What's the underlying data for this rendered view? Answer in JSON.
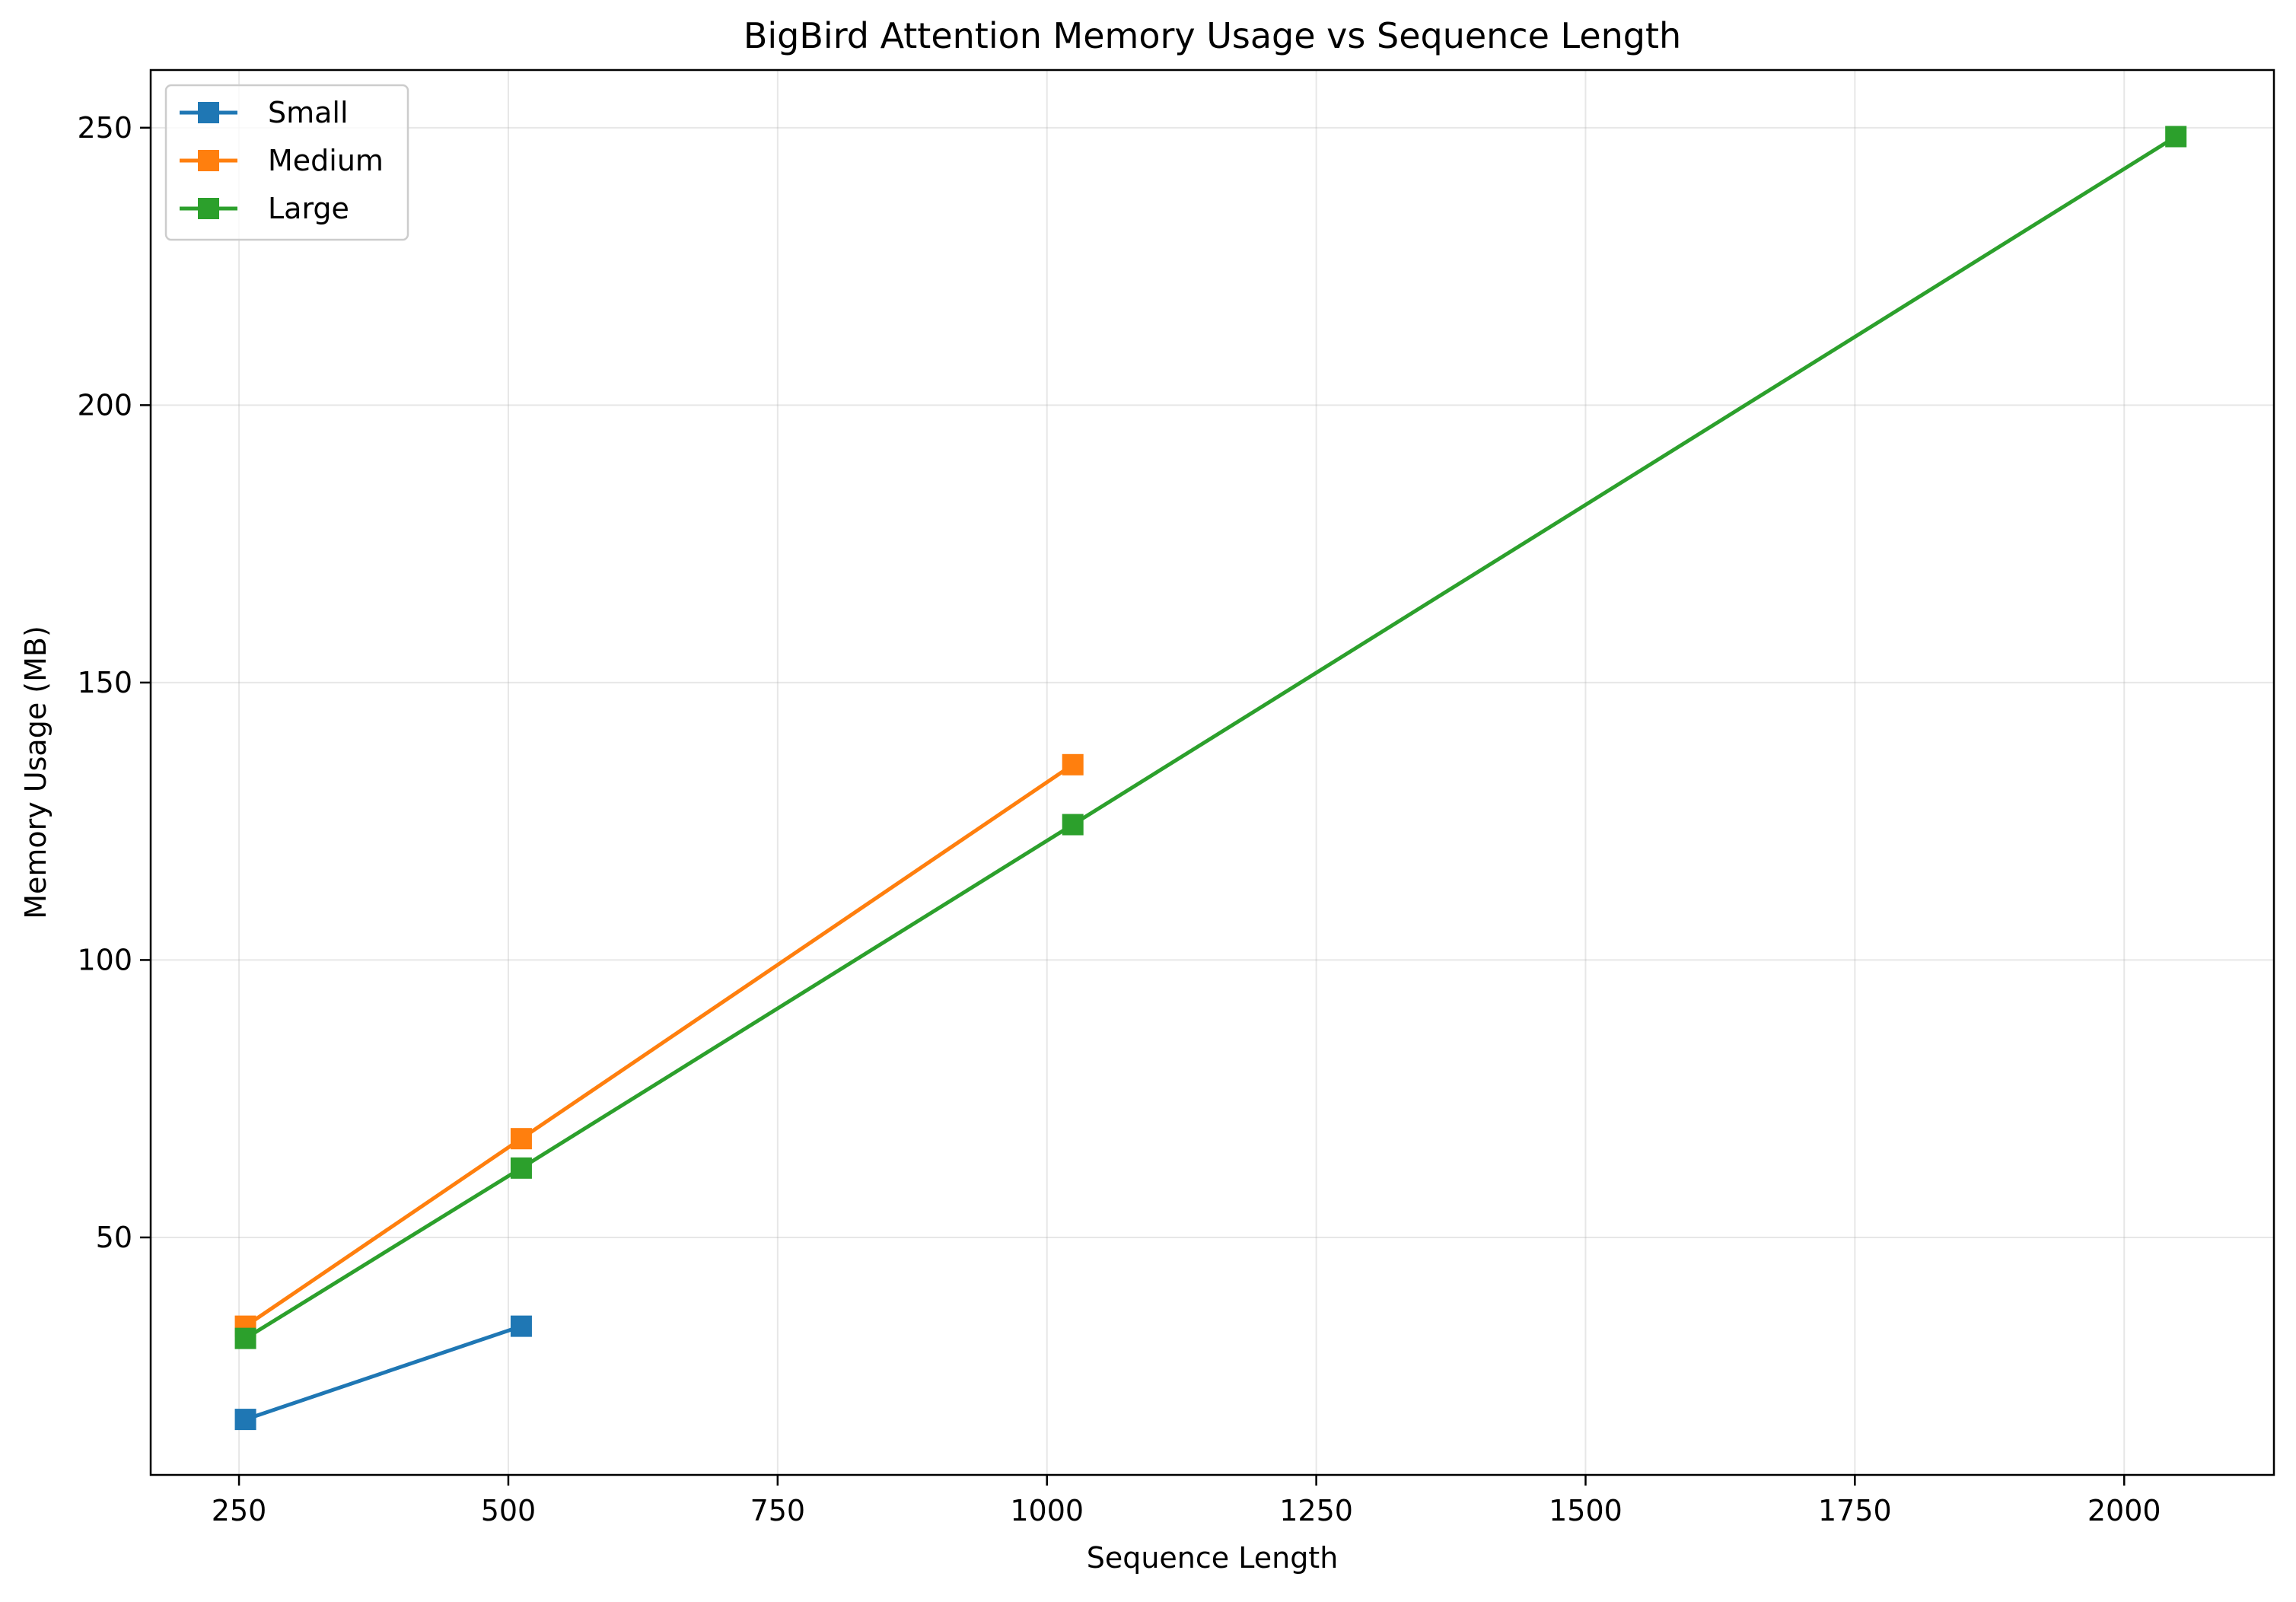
{
  "chart_data": {
    "type": "line",
    "title": "BigBird Attention Memory Usage vs Sequence Length",
    "xlabel": "Sequence Length",
    "ylabel": "Memory Usage (MB)",
    "xlim": [
      168,
      2139
    ],
    "ylim": [
      7.2,
      260.4
    ],
    "xticks": [
      250,
      500,
      750,
      1000,
      1250,
      1500,
      1750,
      2000
    ],
    "yticks": [
      50,
      100,
      150,
      200,
      250
    ],
    "grid": true,
    "legend_position": "top-left",
    "marker": "square",
    "series": [
      {
        "name": "Small",
        "color": "#1f77b4",
        "x": [
          256,
          512
        ],
        "y": [
          17.2,
          34.0
        ]
      },
      {
        "name": "Medium",
        "color": "#ff7f0e",
        "x": [
          256,
          512,
          1024
        ],
        "y": [
          34.0,
          67.8,
          135.2
        ]
      },
      {
        "name": "Large",
        "color": "#2ca02c",
        "x": [
          256,
          512,
          1024,
          2048
        ],
        "y": [
          31.8,
          62.5,
          124.4,
          248.4
        ]
      }
    ]
  }
}
